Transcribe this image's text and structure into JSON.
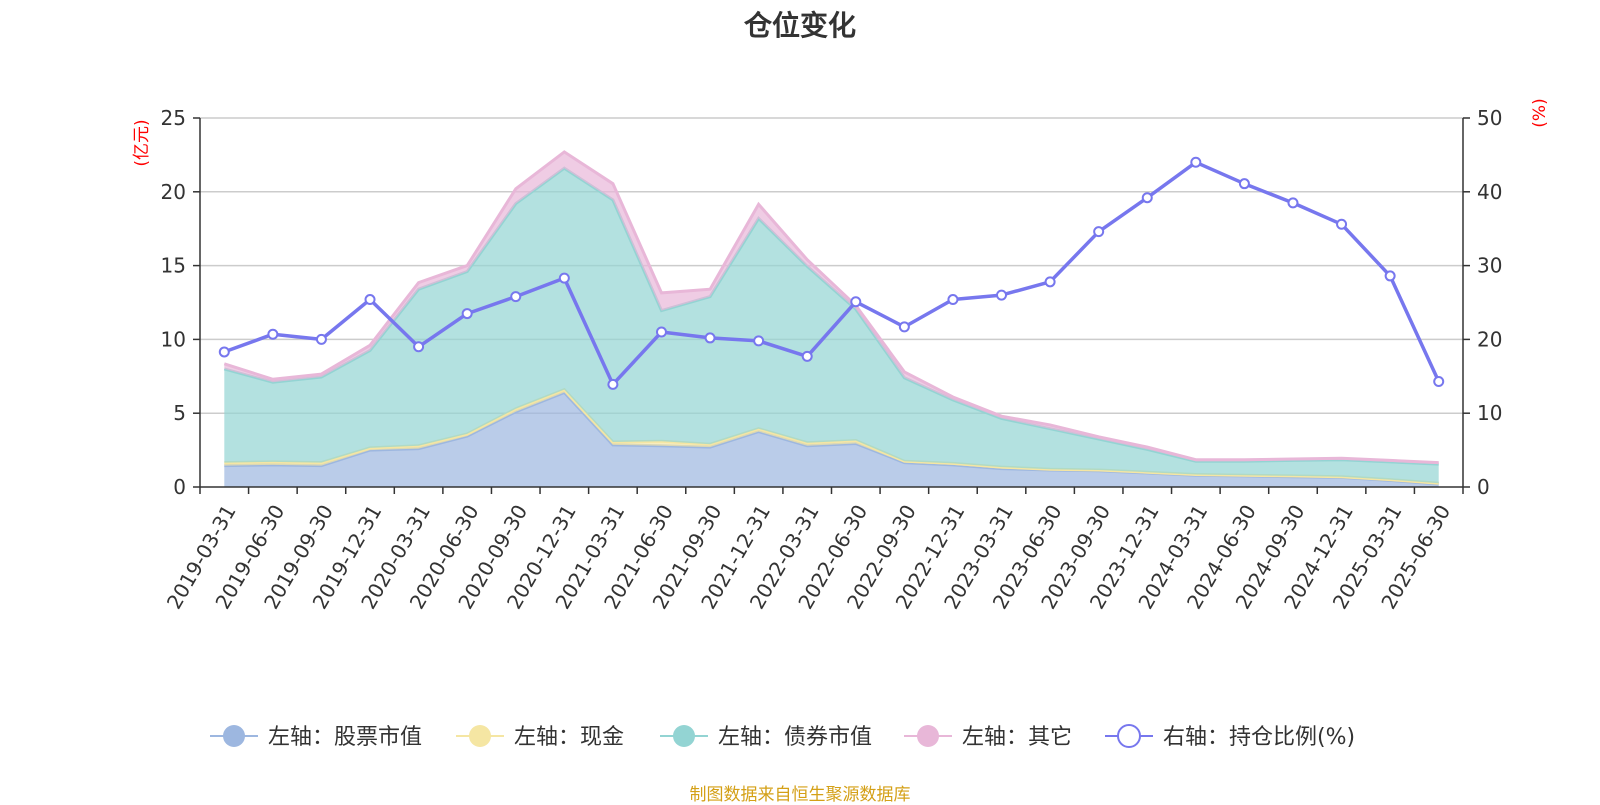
{
  "title": "仓位变化",
  "footer": "制图数据来自恒生聚源数据库",
  "chart_data": {
    "type": "area",
    "title": "仓位变化",
    "left_axis": {
      "unit": "(亿元)",
      "min": 0,
      "max": 25,
      "ticks": [
        0,
        5,
        10,
        15,
        20,
        25
      ]
    },
    "right_axis": {
      "unit": "(%)",
      "min": 0,
      "max": 50,
      "ticks": [
        0,
        10,
        20,
        30,
        40,
        50
      ]
    },
    "grid": true,
    "legend_position": "bottom",
    "categories": [
      "2019-03-31",
      "2019-06-30",
      "2019-09-30",
      "2019-12-31",
      "2020-03-31",
      "2020-06-30",
      "2020-09-30",
      "2020-12-31",
      "2021-03-31",
      "2021-06-30",
      "2021-09-30",
      "2021-12-31",
      "2022-03-31",
      "2022-06-30",
      "2022-09-30",
      "2022-12-31",
      "2023-03-31",
      "2023-06-30",
      "2023-09-30",
      "2023-12-31",
      "2024-03-31",
      "2024-06-30",
      "2024-09-30",
      "2024-12-31",
      "2025-03-31",
      "2025-06-30"
    ],
    "series": [
      {
        "name": "左轴：股票市值",
        "axis": "left",
        "stack": "total",
        "type": "area",
        "color": "#9db7e0",
        "values": [
          1.45,
          1.5,
          1.45,
          2.5,
          2.6,
          3.45,
          5.1,
          6.4,
          2.85,
          2.8,
          2.7,
          3.75,
          2.8,
          2.95,
          1.65,
          1.5,
          1.25,
          1.15,
          1.1,
          0.95,
          0.8,
          0.75,
          0.7,
          0.65,
          0.45,
          0.2
        ]
      },
      {
        "name": "左轴：现金",
        "axis": "left",
        "stack": "total",
        "type": "area",
        "color": "#f5e6a3",
        "values": [
          0.2,
          0.2,
          0.2,
          0.15,
          0.2,
          0.15,
          0.2,
          0.2,
          0.2,
          0.3,
          0.2,
          0.2,
          0.2,
          0.2,
          0.1,
          0.1,
          0.1,
          0.05,
          0.05,
          0.05,
          0.05,
          0.05,
          0.05,
          0.05,
          0.05,
          0.05
        ]
      },
      {
        "name": "左轴：债券市值",
        "axis": "left",
        "stack": "total",
        "type": "area",
        "color": "#93d4d3",
        "values": [
          6.35,
          5.4,
          5.8,
          6.6,
          10.6,
          11.0,
          13.9,
          15.0,
          16.4,
          8.85,
          10.0,
          14.25,
          11.95,
          8.9,
          5.65,
          4.3,
          3.3,
          2.75,
          2.1,
          1.55,
          0.9,
          0.95,
          1.05,
          1.15,
          1.2,
          1.3
        ]
      },
      {
        "name": "左轴：其它",
        "axis": "left",
        "stack": "total",
        "type": "area",
        "color": "#e8b7d8",
        "values": [
          0.35,
          0.2,
          0.2,
          0.35,
          0.45,
          0.4,
          1.0,
          1.1,
          1.1,
          1.2,
          0.5,
          0.95,
          0.45,
          0.25,
          0.4,
          0.2,
          0.15,
          0.25,
          0.15,
          0.15,
          0.1,
          0.1,
          0.1,
          0.1,
          0.1,
          0.1
        ]
      },
      {
        "name": "右轴：持仓比例(%)",
        "axis": "right",
        "type": "line",
        "color": "#7777ee",
        "values": [
          18.3,
          20.7,
          20.0,
          25.4,
          19.0,
          23.5,
          25.8,
          28.3,
          13.9,
          21.0,
          20.2,
          19.8,
          17.7,
          25.1,
          21.7,
          25.4,
          26.0,
          27.8,
          34.6,
          39.2,
          44.0,
          41.1,
          38.5,
          35.6,
          28.6,
          14.3
        ]
      }
    ]
  }
}
